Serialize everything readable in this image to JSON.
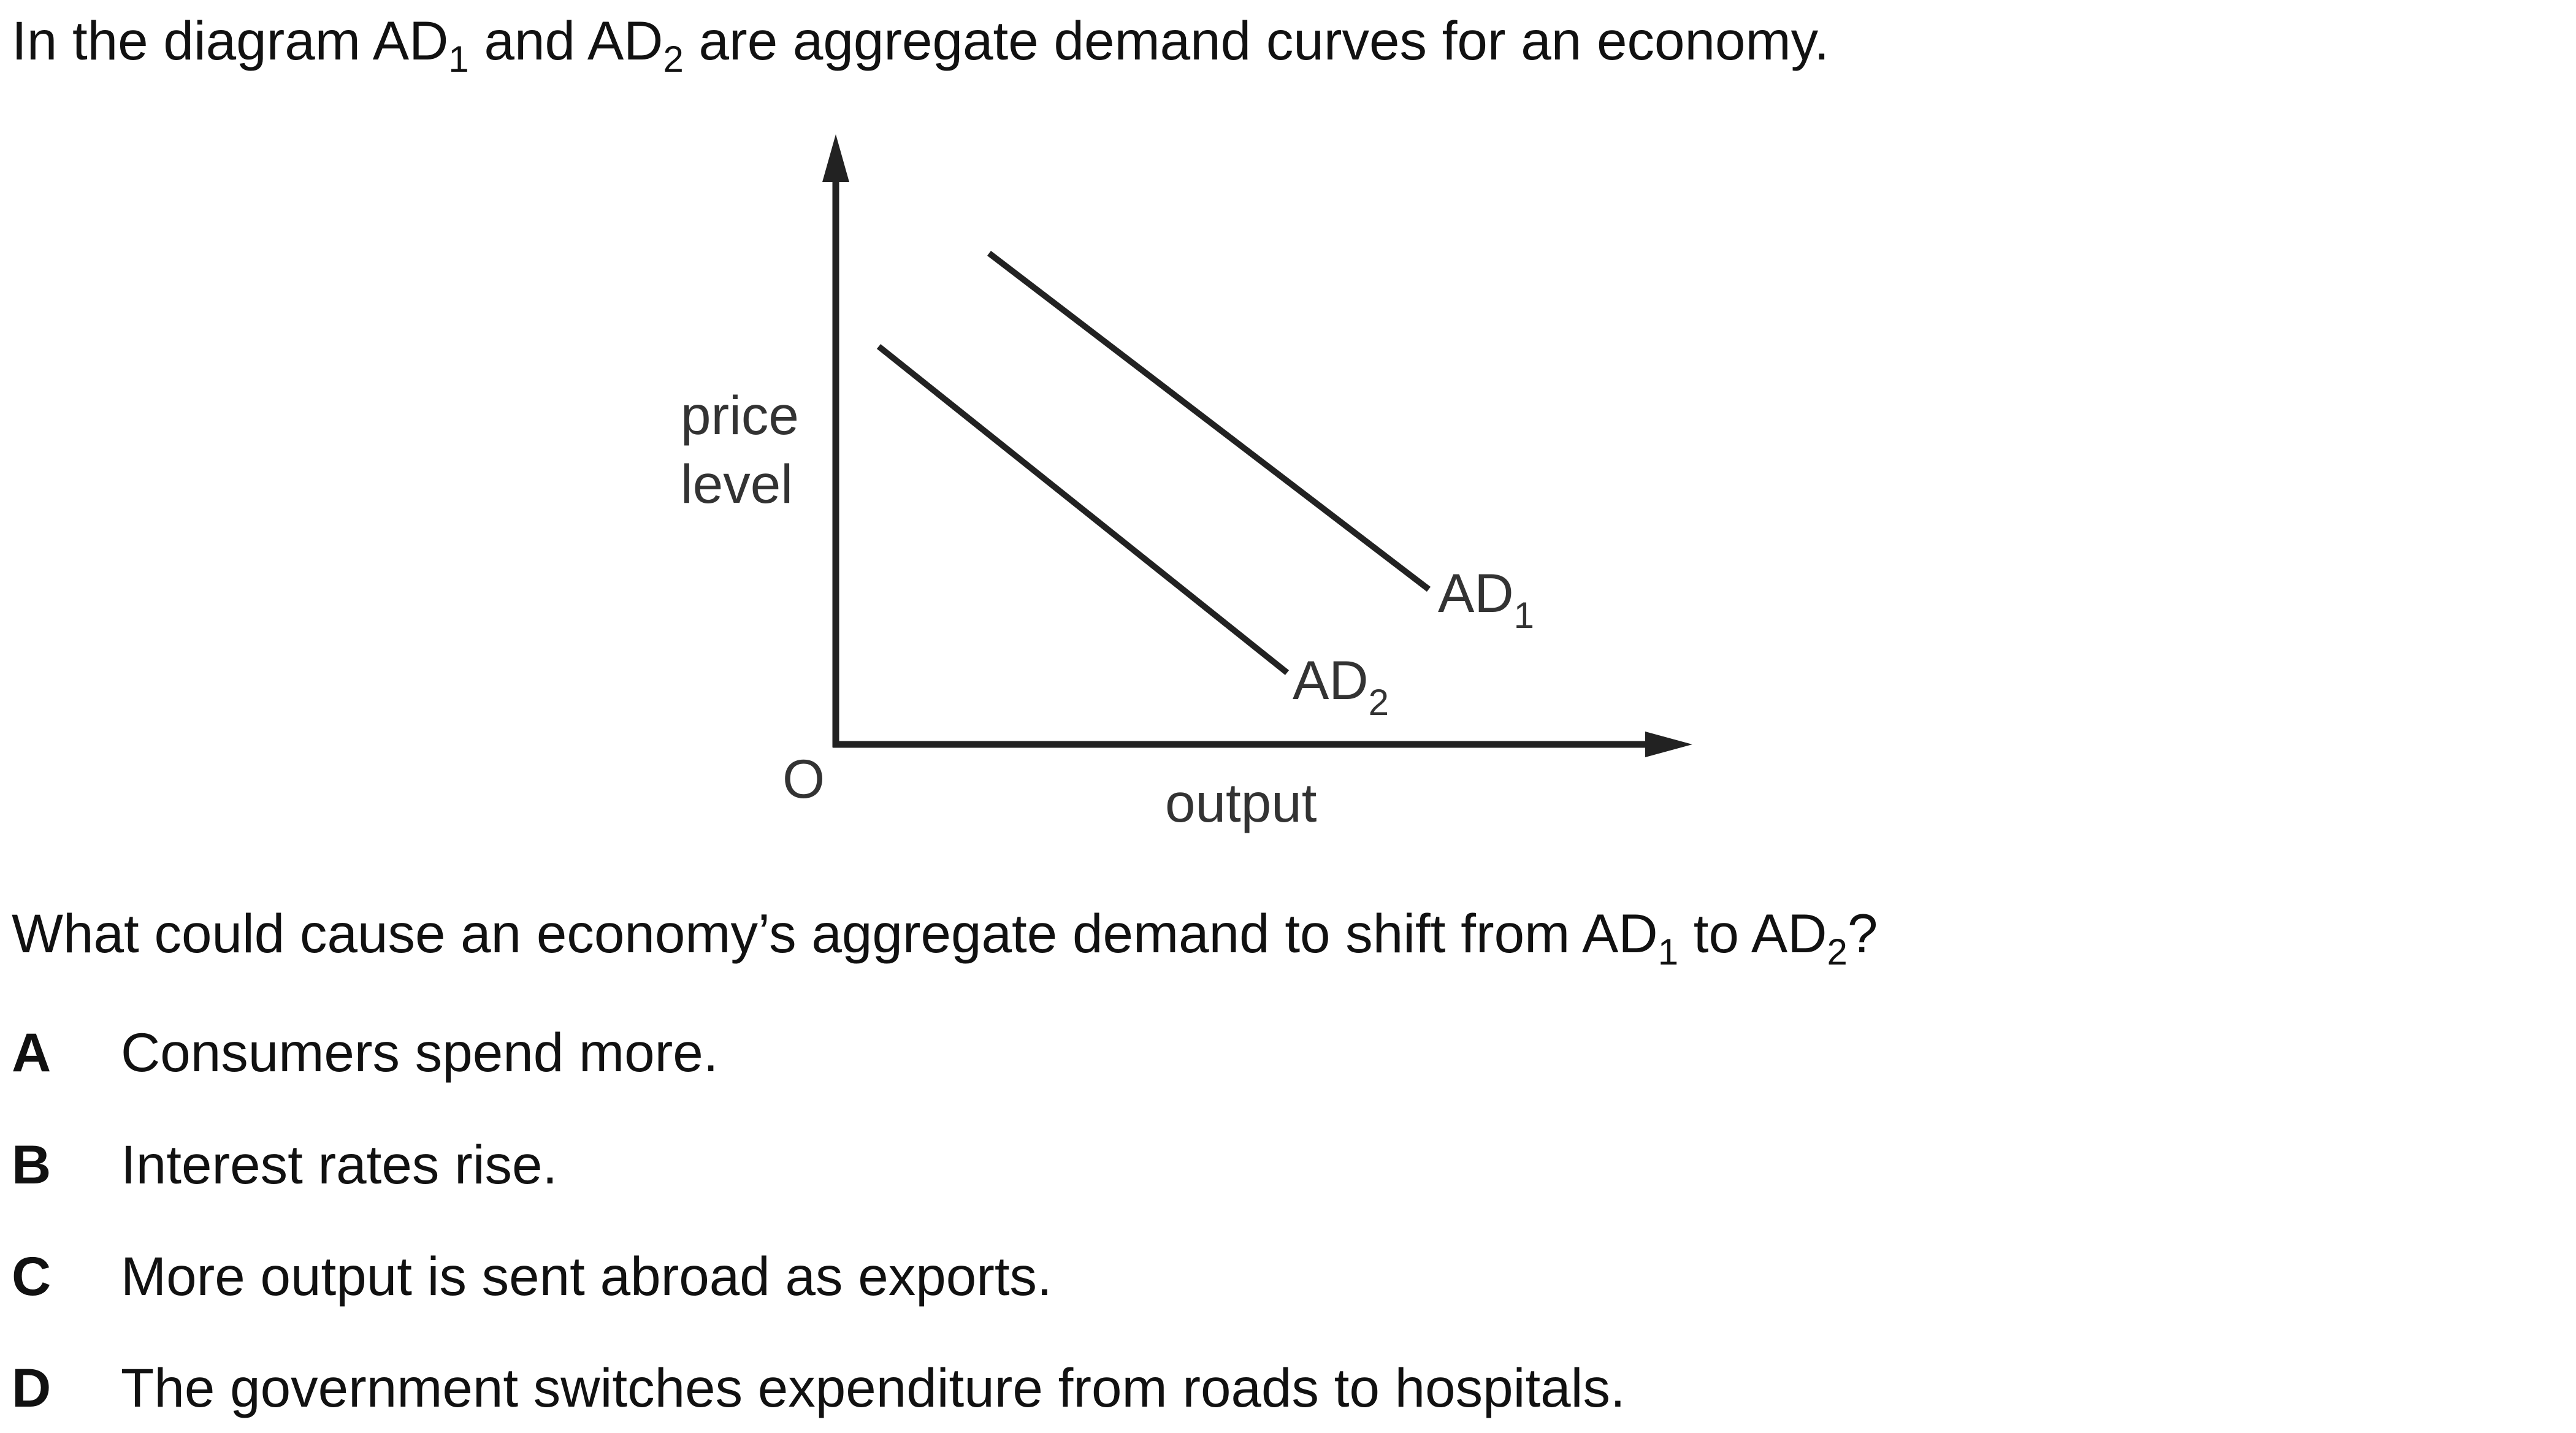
{
  "intro": {
    "prefix": "In the diagram AD",
    "sub1": "1",
    "middle": " and AD",
    "sub2": "2",
    "suffix": " are aggregate demand curves for an economy."
  },
  "diagram": {
    "y_axis_label_line1": "price",
    "y_axis_label_line2": "level",
    "x_axis_label": "output",
    "origin_label": "O",
    "curves": [
      {
        "name": "AD",
        "subscript": "1"
      },
      {
        "name": "AD",
        "subscript": "2"
      }
    ],
    "line_color": "#222222"
  },
  "question": {
    "prefix": "What could cause an economy’s aggregate demand to shift from AD",
    "sub1": "1",
    "middle": " to AD",
    "sub2": "2",
    "suffix": "?"
  },
  "options": [
    {
      "letter": "A",
      "text": "Consumers spend more."
    },
    {
      "letter": "B",
      "text": "Interest rates rise."
    },
    {
      "letter": "C",
      "text": "More output is sent abroad as exports."
    },
    {
      "letter": "D",
      "text": "The government switches expenditure from roads to hospitals."
    }
  ]
}
